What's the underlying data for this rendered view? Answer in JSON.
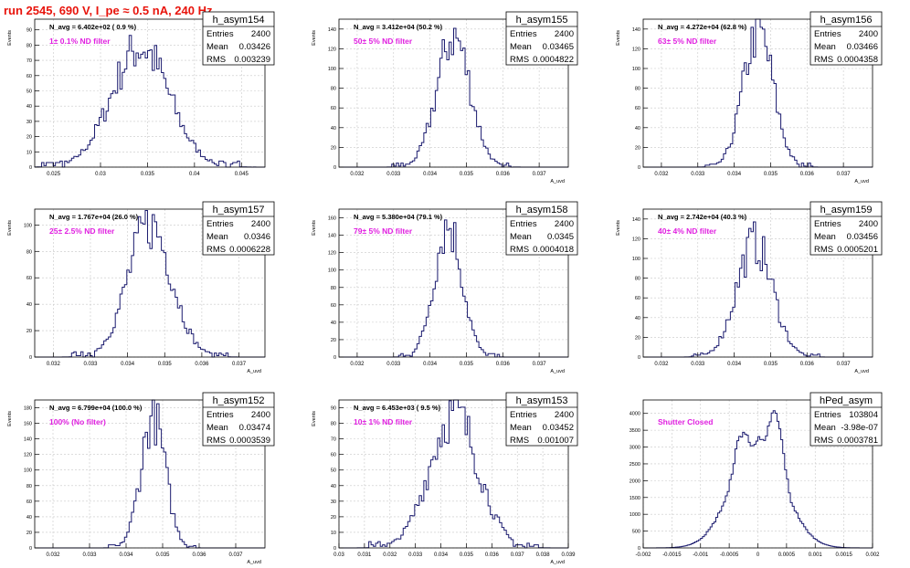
{
  "title": "run 2545,   690 V, I_pe ≈ 0.5 nA, 240 Hz",
  "colors": {
    "title": "#e8140c",
    "hist": "#1a1a6e",
    "annotation": "#e020e0",
    "grid": "#c8c8c8",
    "frame": "#000000"
  },
  "chart_data": [
    {
      "type": "histogram",
      "name": "h_asym154",
      "stats": {
        "entries_label": "Entries",
        "entries": "2400",
        "mean_label": "Mean",
        "mean": "0.03426",
        "rms_label": "RMS",
        "rms": "0.003239"
      },
      "navg": "N_avg = 6.402e+02 ( 0.9 %)",
      "filter": "1± 0.1% ND filter",
      "ylabel": "Events",
      "xlabel": "",
      "xlim": [
        0.023,
        0.0475
      ],
      "ylim": [
        0,
        97
      ],
      "xticks": [
        0.025,
        0.03,
        0.035,
        0.04,
        0.045
      ],
      "xtick_labels": [
        "0.025",
        "0.03",
        "0.035",
        "0.04",
        "0.045"
      ],
      "yticks": [
        0,
        10,
        20,
        30,
        40,
        50,
        60,
        70,
        80,
        90
      ],
      "ytick_labels": [
        "0",
        "10",
        "20",
        "30",
        "40",
        "50",
        "60",
        "70",
        "80",
        "90"
      ],
      "mean_value": 0.03426,
      "sigma": 0.003239,
      "peak": 80,
      "bins": 100
    },
    {
      "type": "histogram",
      "name": "h_asym155",
      "stats": {
        "entries_label": "Entries",
        "entries": "2400",
        "mean_label": "Mean",
        "mean": "0.03465",
        "rms_label": "RMS",
        "rms": "0.0004822"
      },
      "navg": "N_avg = 3.412e+04 (50.2 %)",
      "filter": "50± 5% ND filter",
      "ylabel": "Events",
      "xlabel": "A_uvd",
      "xlim": [
        0.0315,
        0.0378
      ],
      "ylim": [
        0,
        150
      ],
      "xticks": [
        0.032,
        0.033,
        0.034,
        0.035,
        0.036,
        0.037
      ],
      "xtick_labels": [
        "0.032",
        "0.033",
        "0.034",
        "0.035",
        "0.036",
        "0.037"
      ],
      "yticks": [
        0,
        20,
        40,
        60,
        80,
        100,
        120,
        140
      ],
      "ytick_labels": [
        "0",
        "20",
        "40",
        "60",
        "80",
        "100",
        "120",
        "140"
      ],
      "mean_value": 0.03465,
      "sigma": 0.0004822,
      "peak": 135,
      "bins": 100
    },
    {
      "type": "histogram",
      "name": "h_asym156",
      "stats": {
        "entries_label": "Entries",
        "entries": "2400",
        "mean_label": "Mean",
        "mean": "0.03466",
        "rms_label": "RMS",
        "rms": "0.0004358"
      },
      "navg": "N_avg = 4.272e+04 (62.8 %)",
      "filter": "63± 5% ND filter",
      "ylabel": "Events",
      "xlabel": "A_uvd",
      "xlim": [
        0.0315,
        0.0378
      ],
      "ylim": [
        0,
        150
      ],
      "xticks": [
        0.032,
        0.033,
        0.034,
        0.035,
        0.036,
        0.037
      ],
      "xtick_labels": [
        "0.032",
        "0.033",
        "0.034",
        "0.035",
        "0.036",
        "0.037"
      ],
      "yticks": [
        0,
        20,
        40,
        60,
        80,
        100,
        120,
        140
      ],
      "ytick_labels": [
        "0",
        "20",
        "40",
        "60",
        "80",
        "100",
        "120",
        "140"
      ],
      "mean_value": 0.03466,
      "sigma": 0.0004358,
      "peak": 140,
      "bins": 100
    },
    {
      "type": "histogram",
      "name": "h_asym157",
      "stats": {
        "entries_label": "Entries",
        "entries": "2400",
        "mean_label": "Mean",
        "mean": "0.0346",
        "rms_label": "RMS",
        "rms": "0.0006228"
      },
      "navg": "N_avg = 1.767e+04 (26.0 %)",
      "filter": "25± 2.5% ND filter",
      "ylabel": "Events",
      "xlabel": "A_uvd",
      "xlim": [
        0.0315,
        0.0377
      ],
      "ylim": [
        0,
        112
      ],
      "xticks": [
        0.032,
        0.033,
        0.034,
        0.035,
        0.036,
        0.037
      ],
      "xtick_labels": [
        "0.032",
        "0.033",
        "0.034",
        "0.035",
        "0.036",
        "0.037"
      ],
      "yticks": [
        0,
        20,
        40,
        60,
        80,
        100
      ],
      "ytick_labels": [
        "0",
        "20",
        "40",
        "60",
        "80",
        "100"
      ],
      "mean_value": 0.0346,
      "sigma": 0.0006228,
      "peak": 102,
      "bins": 100
    },
    {
      "type": "histogram",
      "name": "h_asym158",
      "stats": {
        "entries_label": "Entries",
        "entries": "2400",
        "mean_label": "Mean",
        "mean": "0.0345",
        "rms_label": "RMS",
        "rms": "0.0004018"
      },
      "navg": "N_avg = 5.380e+04 (79.1 %)",
      "filter": "79± 5% ND filter",
      "ylabel": "Events",
      "xlabel": "A_uvd",
      "xlim": [
        0.0315,
        0.0378
      ],
      "ylim": [
        0,
        170
      ],
      "xticks": [
        0.032,
        0.033,
        0.034,
        0.035,
        0.036,
        0.037
      ],
      "xtick_labels": [
        "0.032",
        "0.033",
        "0.034",
        "0.035",
        "0.036",
        "0.037"
      ],
      "yticks": [
        0,
        20,
        40,
        60,
        80,
        100,
        120,
        140,
        160
      ],
      "ytick_labels": [
        "0",
        "20",
        "40",
        "60",
        "80",
        "100",
        "120",
        "140",
        "160"
      ],
      "mean_value": 0.0345,
      "sigma": 0.0004018,
      "peak": 155,
      "bins": 100
    },
    {
      "type": "histogram",
      "name": "h_asym159",
      "stats": {
        "entries_label": "Entries",
        "entries": "2400",
        "mean_label": "Mean",
        "mean": "0.03456",
        "rms_label": "RMS",
        "rms": "0.0005201"
      },
      "navg": "N_avg = 2.742e+04 (40.3 %)",
      "filter": "40± 4% ND filter",
      "ylabel": "Events",
      "xlabel": "A_uvd",
      "xlim": [
        0.0315,
        0.0378
      ],
      "ylim": [
        0,
        150
      ],
      "xticks": [
        0.032,
        0.033,
        0.034,
        0.035,
        0.036,
        0.037
      ],
      "xtick_labels": [
        "0.032",
        "0.033",
        "0.034",
        "0.035",
        "0.036",
        "0.037"
      ],
      "yticks": [
        0,
        20,
        40,
        60,
        80,
        100,
        120,
        140
      ],
      "ytick_labels": [
        "0",
        "20",
        "40",
        "60",
        "80",
        "100",
        "120",
        "140"
      ],
      "mean_value": 0.03456,
      "sigma": 0.0005201,
      "peak": 118,
      "bins": 100
    },
    {
      "type": "histogram",
      "name": "h_asym152",
      "stats": {
        "entries_label": "Entries",
        "entries": "2400",
        "mean_label": "Mean",
        "mean": "0.03474",
        "rms_label": "RMS",
        "rms": "0.0003539"
      },
      "navg": "N_avg = 6.799e+04 (100.0 %)",
      "filter": "100% (No filter)",
      "ylabel": "Events",
      "xlabel": "A_uvd",
      "xlim": [
        0.0315,
        0.0378
      ],
      "ylim": [
        0,
        190
      ],
      "xticks": [
        0.032,
        0.033,
        0.034,
        0.035,
        0.036,
        0.037
      ],
      "xtick_labels": [
        "0.032",
        "0.033",
        "0.034",
        "0.035",
        "0.036",
        "0.037"
      ],
      "yticks": [
        0,
        20,
        40,
        60,
        80,
        100,
        120,
        140,
        160,
        180
      ],
      "ytick_labels": [
        "0",
        "20",
        "40",
        "60",
        "80",
        "100",
        "120",
        "140",
        "160",
        "180"
      ],
      "mean_value": 0.03474,
      "sigma": 0.0003539,
      "peak": 172,
      "bins": 100
    },
    {
      "type": "histogram",
      "name": "h_asym153",
      "stats": {
        "entries_label": "Entries",
        "entries": "2400",
        "mean_label": "Mean",
        "mean": "0.03452",
        "rms_label": "RMS",
        "rms": "0.001007"
      },
      "navg": "N_avg = 6.453e+03 ( 9.5 %)",
      "filter": "10± 1% ND filter",
      "ylabel": "Events",
      "xlabel": "A_uvd",
      "xlim": [
        0.03,
        0.039
      ],
      "ylim": [
        0,
        95
      ],
      "xticks": [
        0.03,
        0.031,
        0.032,
        0.033,
        0.034,
        0.035,
        0.036,
        0.037,
        0.038,
        0.039
      ],
      "xtick_labels": [
        "0.03",
        "0.031",
        "0.032",
        "0.033",
        "0.034",
        "0.035",
        "0.036",
        "0.037",
        "0.038",
        "0.039"
      ],
      "yticks": [
        0,
        10,
        20,
        30,
        40,
        50,
        60,
        70,
        80,
        90
      ],
      "ytick_labels": [
        "0",
        "10",
        "20",
        "30",
        "40",
        "50",
        "60",
        "70",
        "80",
        "90"
      ],
      "mean_value": 0.03452,
      "sigma": 0.001007,
      "peak": 88,
      "bins": 100
    },
    {
      "type": "histogram",
      "name": "hPed_asym",
      "stats": {
        "entries_label": "Entries",
        "entries": "103804",
        "mean_label": "Mean",
        "mean": "-3.98e-07",
        "rms_label": "RMS",
        "rms": "0.0003781"
      },
      "navg": "",
      "filter": "Shutter Closed",
      "ylabel": "",
      "xlabel": "",
      "xlim": [
        -0.002,
        0.002
      ],
      "ylim": [
        0,
        4400
      ],
      "xticks": [
        -0.002,
        -0.0015,
        -0.001,
        -0.0005,
        0,
        0.0005,
        0.001,
        0.0015,
        0.002
      ],
      "xtick_labels": [
        "-0.002",
        "-0.0015",
        "-0.001",
        "-0.0005",
        "0",
        "0.0005",
        "0.001",
        "0.0015",
        "0.002"
      ],
      "yticks": [
        0,
        500,
        1000,
        1500,
        2000,
        2500,
        3000,
        3500,
        4000
      ],
      "ytick_labels": [
        "0",
        "500",
        "1000",
        "1500",
        "2000",
        "2500",
        "3000",
        "3500",
        "4000"
      ],
      "mean_value": 0,
      "sigma": 0.0003781,
      "peak": 4000,
      "bins": 120,
      "bimodal": true
    }
  ]
}
